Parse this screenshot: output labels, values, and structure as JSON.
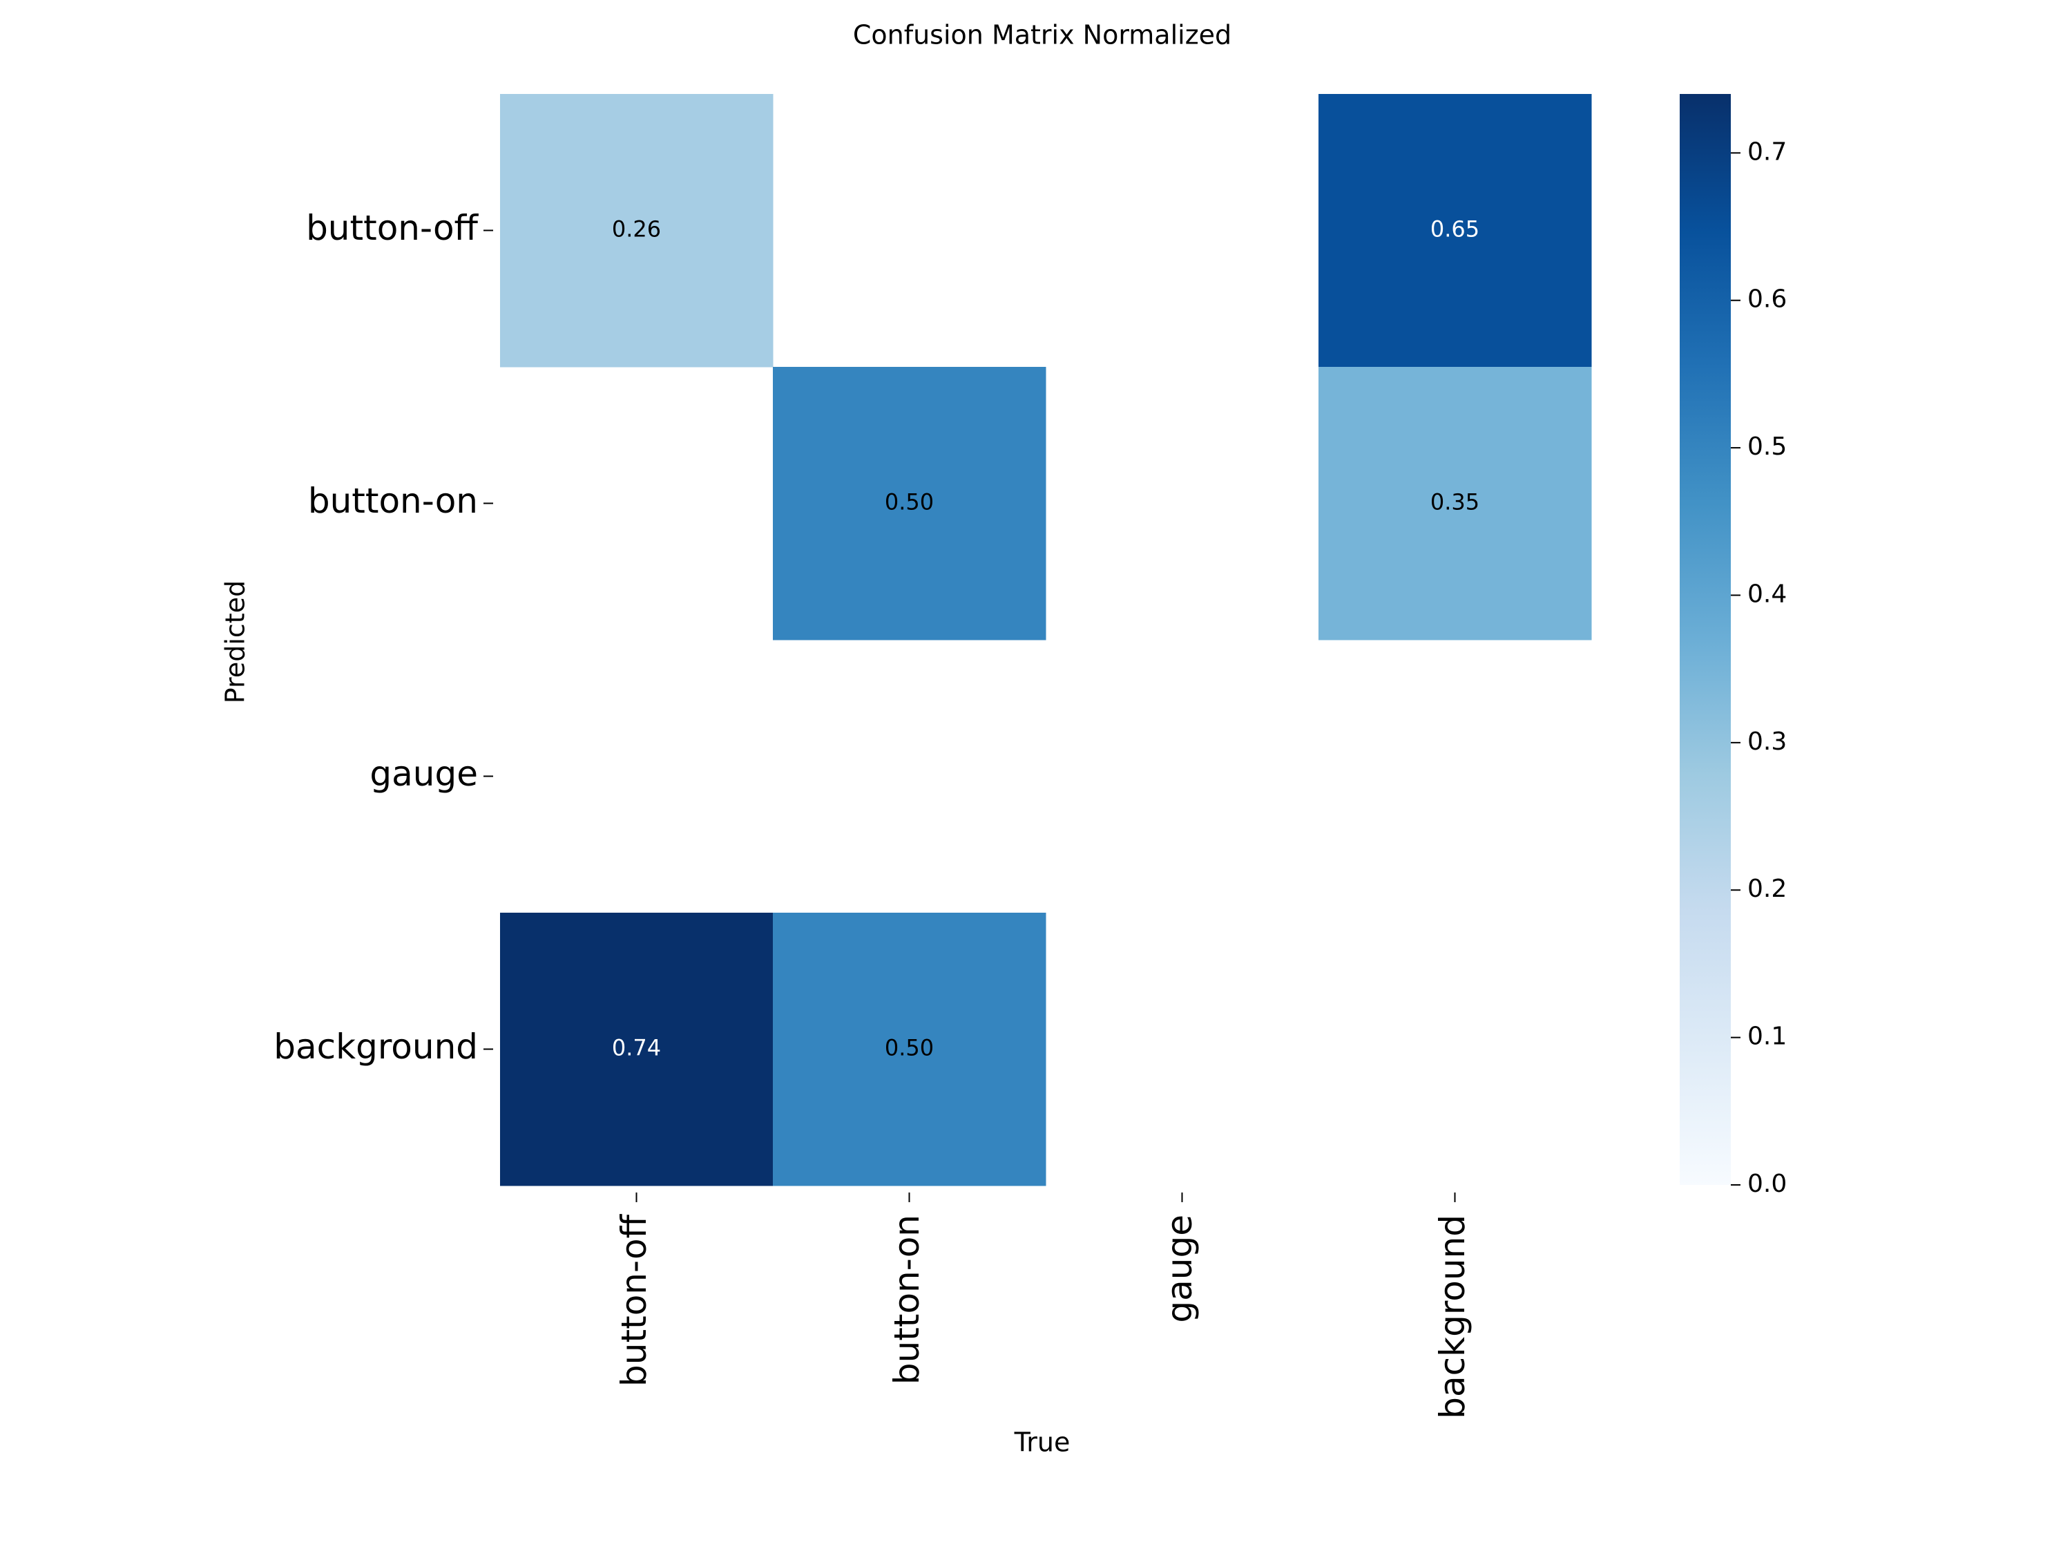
{
  "chart_data": {
    "type": "heatmap",
    "title": "Confusion Matrix Normalized",
    "xlabel": "True",
    "ylabel": "Predicted",
    "x_categories": [
      "button-off",
      "button-on",
      "gauge",
      "background"
    ],
    "y_categories": [
      "button-off",
      "button-on",
      "gauge",
      "background"
    ],
    "values": [
      [
        0.26,
        null,
        null,
        0.65
      ],
      [
        null,
        0.5,
        null,
        0.35
      ],
      [
        null,
        null,
        null,
        null
      ],
      [
        0.74,
        0.5,
        null,
        null
      ]
    ],
    "value_labels": [
      [
        "0.26",
        "",
        "",
        "0.65"
      ],
      [
        "",
        "0.50",
        "",
        "0.35"
      ],
      [
        "",
        "",
        "",
        ""
      ],
      [
        "0.74",
        "0.50",
        "",
        ""
      ]
    ],
    "colorbar": {
      "min": 0.0,
      "max": 0.74,
      "ticks": [
        0.0,
        0.1,
        0.2,
        0.3,
        0.4,
        0.5,
        0.6,
        0.7
      ],
      "tick_labels": [
        "0.0",
        "0.1",
        "0.2",
        "0.3",
        "0.4",
        "0.5",
        "0.6",
        "0.7"
      ],
      "colormap": "Blues"
    },
    "grid": false,
    "legend": "colorbar-right"
  }
}
